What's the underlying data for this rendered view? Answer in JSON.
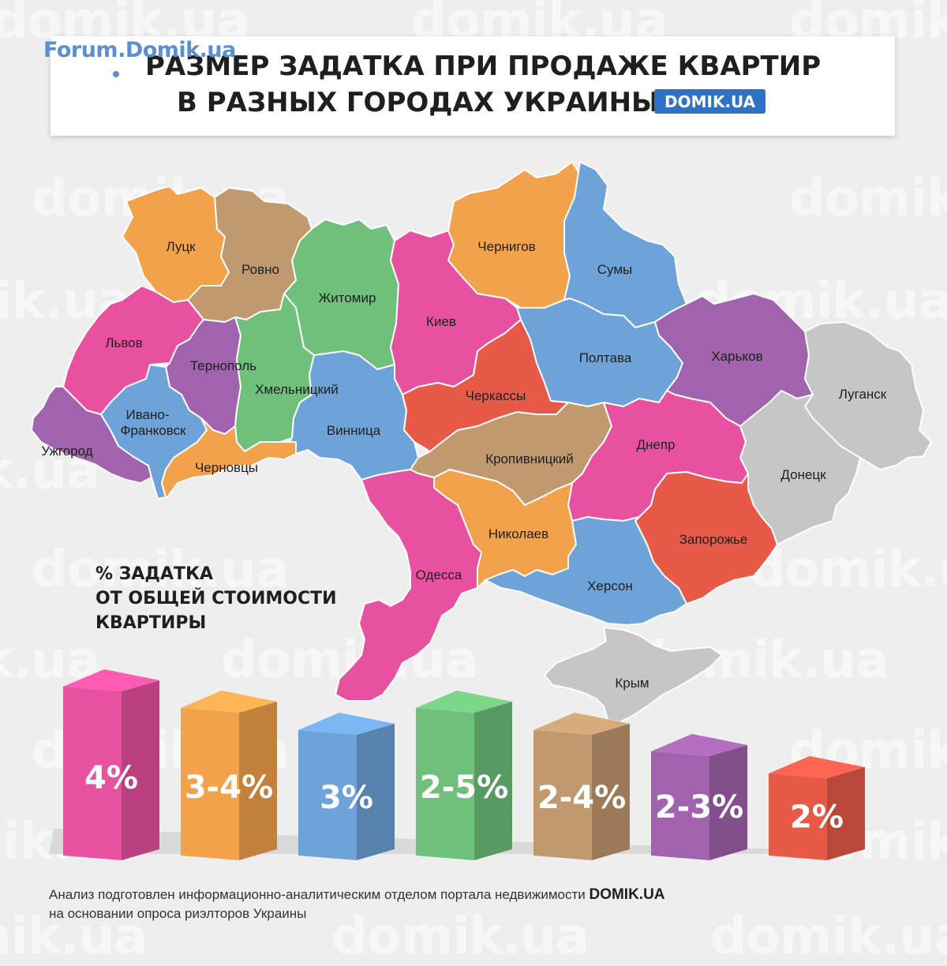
{
  "logo": {
    "text": "Forum.Domik.ua"
  },
  "title": {
    "line1": "РАЗМЕР ЗАДАТКА ПРИ ПРОДАЖЕ КВАРТИР",
    "line2": "В РАЗНЫХ ГОРОДАХ УКРАИНЫ",
    "badge": "DOMIK.UA"
  },
  "watermark": "domik.ua",
  "colors": {
    "pink": "#e8519f",
    "orange": "#f3a24c",
    "blue": "#6ea3d9",
    "green": "#6fc07a",
    "tan": "#c0996e",
    "purple": "#a163ad",
    "red": "#e85a48",
    "gray": "#c6c6c6"
  },
  "regions": [
    {
      "name": "Луцк",
      "group": "orange"
    },
    {
      "name": "Ровно",
      "group": "tan"
    },
    {
      "name": "Житомир",
      "group": "green"
    },
    {
      "name": "Киев",
      "group": "pink"
    },
    {
      "name": "Чернигов",
      "group": "orange"
    },
    {
      "name": "Сумы",
      "group": "blue"
    },
    {
      "name": "Львов",
      "group": "pink"
    },
    {
      "name": "Тернополь",
      "group": "purple"
    },
    {
      "name": "Хмельницкий",
      "group": "green"
    },
    {
      "name": "Винница",
      "group": "blue"
    },
    {
      "name": "Черкассы",
      "group": "red"
    },
    {
      "name": "Полтава",
      "group": "blue"
    },
    {
      "name": "Харьков",
      "group": "purple"
    },
    {
      "name": "Луганск",
      "group": "gray"
    },
    {
      "name": "Ужгород",
      "group": "purple"
    },
    {
      "name": "Ивано-",
      "group": "blue"
    },
    {
      "name": "Франковск",
      "group": "blue"
    },
    {
      "name": "Черновцы",
      "group": "orange"
    },
    {
      "name": "Кропивницкий",
      "group": "tan"
    },
    {
      "name": "Днепр",
      "group": "pink"
    },
    {
      "name": "Донецк",
      "group": "gray"
    },
    {
      "name": "Николаев",
      "group": "orange"
    },
    {
      "name": "Запорожье",
      "group": "red"
    },
    {
      "name": "Одесса",
      "group": "pink"
    },
    {
      "name": "Херсон",
      "group": "blue"
    },
    {
      "name": "Крым",
      "group": "gray"
    }
  ],
  "legend": {
    "title_lines": [
      "% ЗАДАТКА",
      "ОТ ОБЩЕЙ СТОИМОСТИ",
      "КВАРТИРЫ"
    ],
    "bars": [
      {
        "label": "4%",
        "group": "pink",
        "value": 4
      },
      {
        "label": "3-4%",
        "group": "orange",
        "value": 3.5
      },
      {
        "label": "3%",
        "group": "blue",
        "value": 3
      },
      {
        "label": "2-5%",
        "group": "green",
        "value": 3.5
      },
      {
        "label": "2-4%",
        "group": "tan",
        "value": 3
      },
      {
        "label": "2-3%",
        "group": "purple",
        "value": 2.5
      },
      {
        "label": "2%",
        "group": "red",
        "value": 2
      }
    ]
  },
  "footnote": {
    "line1_text": "Анализ подготовлен информационно-аналитическим отделом портала недвижимости ",
    "line1_brand": "DOMIK.UA",
    "line2": "на основании опроса риэлторов Украины"
  }
}
